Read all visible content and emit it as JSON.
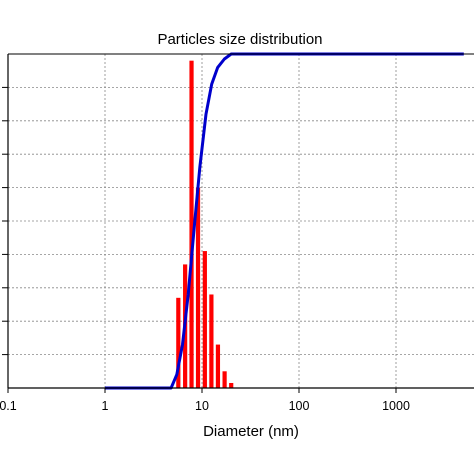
{
  "chart_data": {
    "type": "bar",
    "title": "Particles size distribution",
    "xlabel": "Diameter (nm)",
    "ylabel": "",
    "x_scale": "log",
    "xlim": [
      0.1,
      5000
    ],
    "ylim": [
      0,
      1
    ],
    "x_ticks": [
      {
        "value": 0.1,
        "label": "0.1"
      },
      {
        "value": 1,
        "label": "1"
      },
      {
        "value": 10,
        "label": "10"
      },
      {
        "value": 100,
        "label": "100"
      },
      {
        "value": 1000,
        "label": "1000"
      }
    ],
    "y_gridlines": 10,
    "grid": true,
    "series": [
      {
        "kind": "bar",
        "color": "#ff0000",
        "bars": [
          {
            "x": 5.7,
            "value": 0.27
          },
          {
            "x": 6.7,
            "value": 0.37
          },
          {
            "x": 7.8,
            "value": 0.98
          },
          {
            "x": 9.1,
            "value": 0.6
          },
          {
            "x": 10.7,
            "value": 0.41
          },
          {
            "x": 12.5,
            "value": 0.28
          },
          {
            "x": 14.6,
            "value": 0.13
          },
          {
            "x": 17.1,
            "value": 0.05
          },
          {
            "x": 20.0,
            "value": 0.015
          }
        ]
      },
      {
        "kind": "line",
        "color": "#0000cc",
        "points": [
          {
            "x": 1,
            "y": 0.0
          },
          {
            "x": 4.8,
            "y": 0.0
          },
          {
            "x": 5.5,
            "y": 0.04
          },
          {
            "x": 6.3,
            "y": 0.13
          },
          {
            "x": 7.2,
            "y": 0.28
          },
          {
            "x": 8.3,
            "y": 0.48
          },
          {
            "x": 9.5,
            "y": 0.66
          },
          {
            "x": 11.0,
            "y": 0.82
          },
          {
            "x": 12.6,
            "y": 0.91
          },
          {
            "x": 14.5,
            "y": 0.96
          },
          {
            "x": 17.0,
            "y": 0.985
          },
          {
            "x": 20.0,
            "y": 1.0
          },
          {
            "x": 5000,
            "y": 1.0
          }
        ]
      }
    ]
  }
}
